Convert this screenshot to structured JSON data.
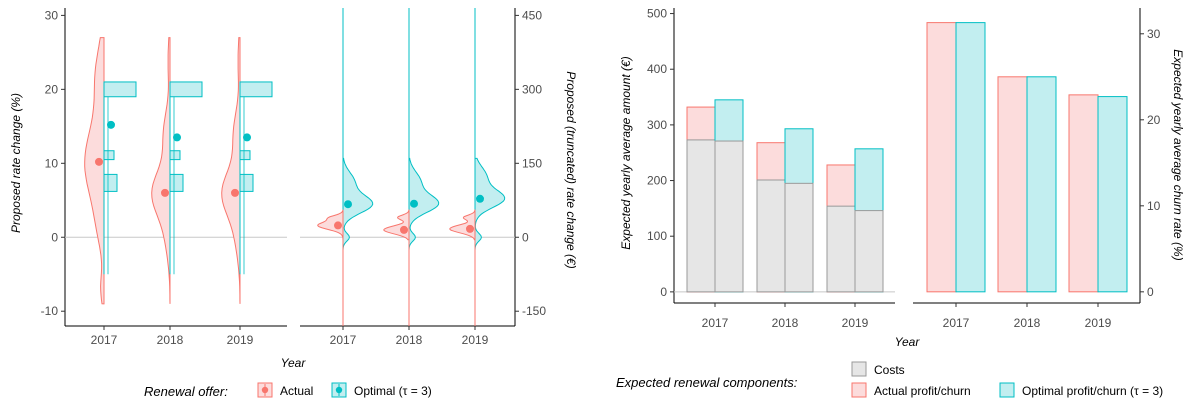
{
  "colors": {
    "actual_line": "#F8766D",
    "actual_fill": "#FCDCDC",
    "optimal_line": "#00BFC4",
    "optimal_fill": "#C2EEF0",
    "costs_fill": "#E6E6E6",
    "costs_line": "#999999",
    "zero_line": "#C8C8C8"
  },
  "chart_data": [
    {
      "type": "violin",
      "panel": "left-a",
      "categories": [
        "2017",
        "2018",
        "2019"
      ],
      "ylabel": "Proposed rate change (%)",
      "xlabel": "Year",
      "ylim": [
        -12,
        31
      ],
      "yticks": [
        -10,
        0,
        10,
        20,
        30
      ],
      "series": [
        {
          "name": "Actual",
          "medians": [
            10.2,
            6.0,
            6.0
          ],
          "range": [
            [
              -9,
              27
            ],
            [
              -9,
              27
            ],
            [
              -9,
              27
            ]
          ]
        },
        {
          "name": "Optimal (τ = 3)",
          "medians": [
            15.2,
            13.5,
            13.5
          ],
          "range": [
            [
              -5,
              21
            ],
            [
              -5,
              19
            ],
            [
              -5,
              21
            ]
          ],
          "bars": [
            [
              19,
              21
            ],
            [
              10.5,
              11.7
            ],
            [
              6.2,
              8.5
            ]
          ]
        }
      ]
    },
    {
      "type": "violin",
      "panel": "left-b",
      "categories": [
        "2017",
        "2018",
        "2019"
      ],
      "ylabel": "Proposed (truncated) rate change (€)",
      "ylim": [
        -180,
        465
      ],
      "yticks": [
        -150,
        0,
        150,
        300,
        450
      ],
      "series": [
        {
          "name": "Actual",
          "medians": [
            24,
            15,
            17
          ]
        },
        {
          "name": "Optimal (τ = 3)",
          "medians": [
            67,
            68,
            78
          ]
        }
      ]
    },
    {
      "type": "bar",
      "panel": "right-a",
      "categories": [
        "2017",
        "2018",
        "2019"
      ],
      "xlabel": "Year",
      "ylabel": "Expected yearly average amount (€)",
      "ylim": [
        -20,
        510
      ],
      "yticks": [
        0,
        100,
        200,
        300,
        400,
        500
      ],
      "series": [
        {
          "name": "Costs",
          "actual": [
            273,
            201,
            154
          ],
          "optimal": [
            271,
            195,
            146
          ]
        },
        {
          "name": "Actual profit/churn",
          "values": [
            332,
            268,
            228
          ]
        },
        {
          "name": "Optimal profit/churn (τ = 3)",
          "values": [
            345,
            293,
            257
          ]
        }
      ]
    },
    {
      "type": "bar",
      "panel": "right-b",
      "categories": [
        "2017",
        "2018",
        "2019"
      ],
      "ylabel": "Expected yearly average churn rate (%)",
      "ylim": [
        -1.3,
        33
      ],
      "yticks": [
        0,
        10,
        20,
        30
      ],
      "series": [
        {
          "name": "Actual profit/churn",
          "values": [
            31.3,
            25.0,
            22.9
          ]
        },
        {
          "name": "Optimal profit/churn (τ = 3)",
          "values": [
            31.3,
            25.0,
            22.7
          ]
        }
      ]
    }
  ],
  "legends": {
    "left": {
      "title": "Renewal offer:",
      "items": [
        "Actual",
        "Optimal (τ = 3)"
      ]
    },
    "right": {
      "title": "Expected renewal components:",
      "items": [
        "Costs",
        "Actual profit/churn",
        "Optimal profit/churn (τ = 3)"
      ]
    }
  }
}
